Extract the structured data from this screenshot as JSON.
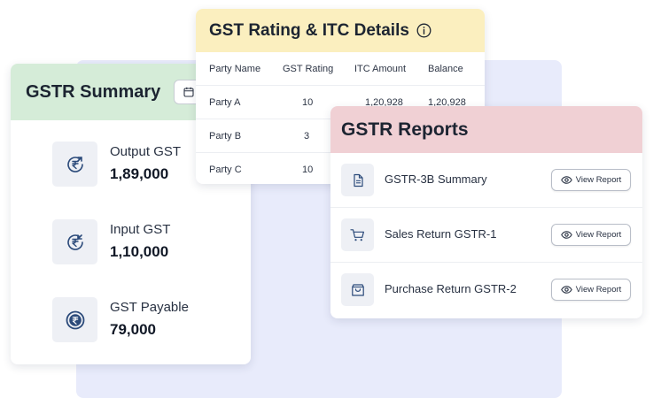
{
  "summary": {
    "title": "GSTR Summary",
    "items": [
      {
        "label": "Output GST",
        "value": "1,89,000",
        "icon": "rupee-up-arrow-icon"
      },
      {
        "label": "Input GST",
        "value": "1,10,000",
        "icon": "rupee-down-arrow-icon"
      },
      {
        "label": "GST Payable",
        "value": "79,000",
        "icon": "rupee-coin-icon"
      }
    ]
  },
  "rating": {
    "title": "GST Rating & ITC Details",
    "columns": [
      "Party Name",
      "GST Rating",
      "ITC Amount",
      "Balance"
    ],
    "rows": [
      [
        "Party A",
        "10",
        "1,20,928",
        "1,20,928"
      ],
      [
        "Party B",
        "3",
        "",
        ""
      ],
      [
        "Party C",
        "10",
        "",
        ""
      ]
    ]
  },
  "reports": {
    "title": "GSTR Reports",
    "button_label": "View Report",
    "items": [
      {
        "label": "GSTR-3B Summary",
        "icon": "document-icon"
      },
      {
        "label": "Sales Return GSTR-1",
        "icon": "cart-icon"
      },
      {
        "label": "Purchase Return GSTR-2",
        "icon": "shopping-bag-icon"
      }
    ]
  },
  "colors": {
    "summary_header": "#d5ecd8",
    "rating_header": "#fbefbf",
    "reports_header": "#f0d0d4",
    "backdrop": "#e8ebfb",
    "icon_blue": "#2b4a7a"
  }
}
